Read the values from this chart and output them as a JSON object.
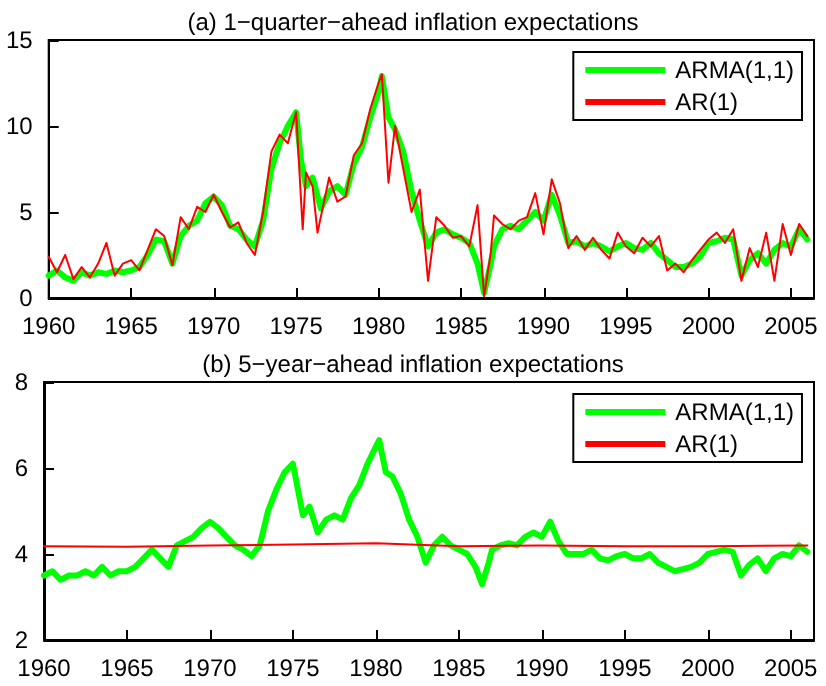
{
  "chart_data": [
    {
      "type": "line",
      "title": "(a) 1−quarter−ahead inflation expectations",
      "xlim": [
        1960,
        2006.4
      ],
      "xticks": [
        1960,
        1965,
        1970,
        1975,
        1980,
        1985,
        1990,
        1995,
        2000,
        2005
      ],
      "ylim": [
        0,
        15
      ],
      "yticks": [
        0,
        5,
        10,
        15
      ],
      "legend": "top right",
      "marker": "none",
      "line_style": "solid",
      "series": [
        {
          "name": "ARMA(1,1)",
          "color": "#00ff00",
          "x": [
            1960,
            1960.5,
            1961,
            1961.5,
            1962,
            1962.5,
            1963,
            1963.5,
            1964,
            1964.5,
            1965,
            1965.5,
            1966,
            1966.5,
            1967,
            1967.5,
            1968,
            1968.5,
            1969,
            1969.5,
            1970,
            1970.5,
            1971,
            1971.5,
            1972,
            1972.5,
            1973,
            1973.5,
            1974,
            1974.5,
            1975,
            1975.3,
            1975.6,
            1976,
            1976.5,
            1977,
            1977.5,
            1978,
            1978.5,
            1979,
            1979.5,
            1980,
            1980.2,
            1980.6,
            1981,
            1981.5,
            1982,
            1982.5,
            1983,
            1983.5,
            1984,
            1984.5,
            1985,
            1985.5,
            1986,
            1986.4,
            1986.8,
            1987,
            1987.5,
            1988,
            1988.5,
            1989,
            1989.5,
            1990,
            1990.5,
            1991,
            1991.5,
            1992,
            1992.5,
            1993,
            1993.5,
            1994,
            1994.5,
            1995,
            1995.5,
            1996,
            1996.5,
            1997,
            1997.5,
            1998,
            1998.5,
            1999,
            1999.5,
            2000,
            2000.5,
            2001,
            2001.5,
            2002,
            2002.5,
            2003,
            2003.5,
            2004,
            2004.5,
            2005,
            2005.5,
            2006
          ],
          "values": [
            1.3,
            1.6,
            1.2,
            1.0,
            1.5,
            1.3,
            1.5,
            1.4,
            1.6,
            1.5,
            1.6,
            1.8,
            2.5,
            3.4,
            3.3,
            2.0,
            3.6,
            4.2,
            4.5,
            5.5,
            5.9,
            5.4,
            4.2,
            4.0,
            3.4,
            3.0,
            4.5,
            7.5,
            9.0,
            10.0,
            10.8,
            8.0,
            6.5,
            7.0,
            5.2,
            6.2,
            6.5,
            6.0,
            7.8,
            8.8,
            10.5,
            12.0,
            12.9,
            10.5,
            9.8,
            8.5,
            6.2,
            4.5,
            3.0,
            3.8,
            4.0,
            3.7,
            3.5,
            3.2,
            2.0,
            0.3,
            2.0,
            3.0,
            4.0,
            4.2,
            4.0,
            4.5,
            5.0,
            4.5,
            6.0,
            4.8,
            3.2,
            3.3,
            3.0,
            3.2,
            3.0,
            2.7,
            3.0,
            3.2,
            2.9,
            2.8,
            3.2,
            2.6,
            2.2,
            1.8,
            1.8,
            2.0,
            2.4,
            3.2,
            3.3,
            3.5,
            3.4,
            1.3,
            2.2,
            2.6,
            2.0,
            2.8,
            3.2,
            3.0,
            4.0,
            3.4
          ]
        },
        {
          "name": "AR(1)",
          "color": "#ff0000",
          "x": [
            1960,
            1960.5,
            1961,
            1961.5,
            1962,
            1962.5,
            1963,
            1963.5,
            1964,
            1964.5,
            1965,
            1965.5,
            1966,
            1966.5,
            1967,
            1967.5,
            1968,
            1968.5,
            1969,
            1969.5,
            1970,
            1970.5,
            1971,
            1971.5,
            1972,
            1972.5,
            1973,
            1973.5,
            1974,
            1974.5,
            1975,
            1975.4,
            1975.6,
            1976,
            1976.3,
            1977,
            1977.5,
            1978,
            1978.5,
            1979,
            1979.5,
            1980,
            1980.2,
            1980.6,
            1981,
            1981.5,
            1982,
            1982.5,
            1983,
            1983.5,
            1984,
            1984.5,
            1985,
            1985.5,
            1986,
            1986.4,
            1986.8,
            1987,
            1987.5,
            1988,
            1988.5,
            1989,
            1989.5,
            1990,
            1990.5,
            1991,
            1991.5,
            1992,
            1992.5,
            1993,
            1993.5,
            1994,
            1994.5,
            1995,
            1995.5,
            1996,
            1996.5,
            1997,
            1997.5,
            1998,
            1998.5,
            1999,
            1999.5,
            2000,
            2000.5,
            2001,
            2001.5,
            2002,
            2002.5,
            2003,
            2003.5,
            2004,
            2004.5,
            2005,
            2005.5,
            2006
          ],
          "values": [
            2.4,
            1.5,
            2.5,
            1.1,
            1.8,
            1.2,
            2.0,
            3.2,
            1.3,
            2.0,
            2.2,
            1.6,
            2.8,
            4.0,
            3.6,
            1.9,
            4.7,
            4.0,
            5.3,
            5.0,
            6.0,
            5.0,
            4.1,
            4.4,
            3.2,
            2.5,
            5.0,
            8.5,
            9.5,
            9.0,
            10.8,
            4.0,
            7.3,
            6.5,
            3.8,
            7.0,
            5.6,
            5.9,
            8.3,
            9.0,
            11.0,
            12.5,
            13.0,
            6.7,
            10.0,
            7.5,
            5.0,
            6.3,
            1.0,
            4.7,
            4.2,
            3.5,
            3.6,
            3.0,
            5.4,
            0.1,
            2.6,
            4.8,
            4.3,
            4.0,
            4.5,
            4.7,
            6.1,
            3.7,
            6.9,
            5.5,
            2.9,
            3.6,
            2.8,
            3.5,
            2.8,
            2.3,
            3.8,
            3.0,
            2.6,
            3.5,
            3.0,
            3.6,
            1.6,
            2.0,
            1.5,
            2.2,
            2.8,
            3.4,
            3.8,
            3.2,
            4.0,
            1.0,
            2.9,
            1.8,
            3.8,
            1.0,
            4.3,
            2.5,
            4.3,
            3.6
          ]
        }
      ]
    },
    {
      "type": "line",
      "title": "(b) 5−year−ahead inflation expectations",
      "xlim": [
        1960,
        2006.4
      ],
      "xticks": [
        1960,
        1965,
        1970,
        1975,
        1980,
        1985,
        1990,
        1995,
        2000,
        2005
      ],
      "ylim": [
        2,
        8
      ],
      "yticks": [
        2,
        4,
        6,
        8
      ],
      "legend": "top right",
      "marker": "none",
      "line_style": "solid",
      "series": [
        {
          "name": "ARMA(1,1)",
          "color": "#00ff00",
          "x": [
            1960,
            1960.5,
            1961,
            1961.5,
            1962,
            1962.5,
            1963,
            1963.5,
            1964,
            1964.5,
            1965,
            1965.5,
            1966,
            1966.5,
            1967,
            1967.5,
            1968,
            1968.5,
            1969,
            1969.5,
            1970,
            1970.5,
            1971,
            1971.5,
            1972,
            1972.5,
            1973,
            1973.5,
            1974,
            1974.5,
            1975,
            1975.3,
            1975.6,
            1976,
            1976.5,
            1977,
            1977.5,
            1978,
            1978.5,
            1979,
            1979.5,
            1980,
            1980.2,
            1980.6,
            1981,
            1981.5,
            1982,
            1982.5,
            1983,
            1983.5,
            1984,
            1984.5,
            1985,
            1985.5,
            1986,
            1986.4,
            1986.8,
            1987,
            1987.5,
            1988,
            1988.5,
            1989,
            1989.5,
            1990,
            1990.5,
            1991,
            1991.5,
            1992,
            1992.5,
            1993,
            1993.5,
            1994,
            1994.5,
            1995,
            1995.5,
            1996,
            1996.5,
            1997,
            1997.5,
            1998,
            1998.5,
            1999,
            1999.5,
            2000,
            2000.5,
            2001,
            2001.5,
            2002,
            2002.5,
            2003,
            2003.5,
            2004,
            2004.5,
            2005,
            2005.5,
            2006
          ],
          "values": [
            3.5,
            3.6,
            3.4,
            3.5,
            3.5,
            3.6,
            3.5,
            3.7,
            3.5,
            3.6,
            3.6,
            3.7,
            3.9,
            4.1,
            3.9,
            3.7,
            4.2,
            4.3,
            4.4,
            4.6,
            4.75,
            4.6,
            4.4,
            4.2,
            4.1,
            3.95,
            4.2,
            5.0,
            5.5,
            5.9,
            6.1,
            5.5,
            4.9,
            5.1,
            4.5,
            4.8,
            4.9,
            4.8,
            5.3,
            5.6,
            6.1,
            6.5,
            6.65,
            5.9,
            5.8,
            5.4,
            4.8,
            4.4,
            3.8,
            4.2,
            4.4,
            4.2,
            4.1,
            4.0,
            3.7,
            3.3,
            3.8,
            4.1,
            4.2,
            4.25,
            4.2,
            4.4,
            4.5,
            4.4,
            4.75,
            4.3,
            4.0,
            4.0,
            4.0,
            4.1,
            3.9,
            3.85,
            3.95,
            4.0,
            3.9,
            3.9,
            4.0,
            3.8,
            3.7,
            3.6,
            3.65,
            3.7,
            3.8,
            4.0,
            4.05,
            4.1,
            4.05,
            3.5,
            3.75,
            3.9,
            3.6,
            3.9,
            4.0,
            3.95,
            4.2,
            4.05
          ]
        },
        {
          "name": "AR(1)",
          "color": "#ff0000",
          "x": [
            1960,
            1965,
            1970,
            1975,
            1980,
            1985,
            1990,
            1995,
            2000,
            2006
          ],
          "values": [
            4.18,
            4.17,
            4.2,
            4.22,
            4.25,
            4.18,
            4.2,
            4.18,
            4.18,
            4.2
          ]
        }
      ]
    }
  ]
}
